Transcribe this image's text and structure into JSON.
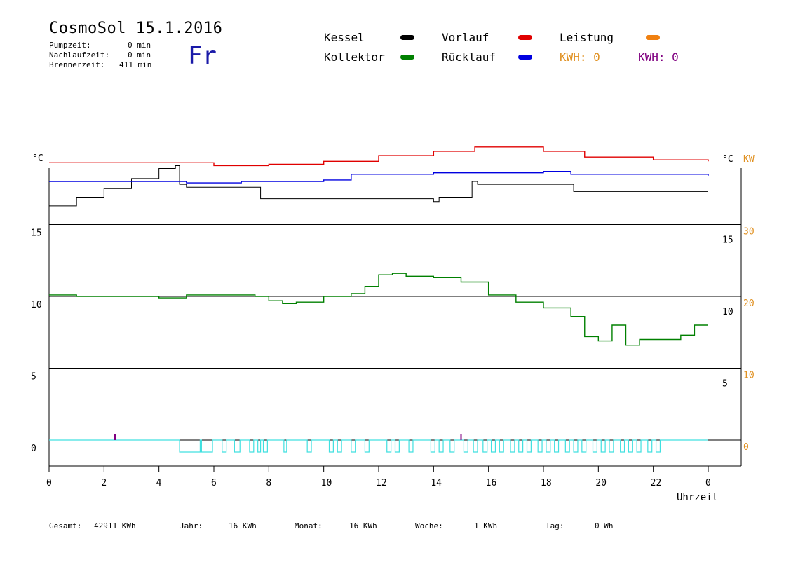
{
  "header": {
    "title": "CosmoSol 15.1.2016",
    "day": "Fr",
    "stats": [
      {
        "label": "Pumpzeit:",
        "value": "0 min"
      },
      {
        "label": "Nachlaufzeit:",
        "value": "0 min"
      },
      {
        "label": "Brennerzeit:",
        "value": "411 min"
      }
    ]
  },
  "legend": {
    "kessel": {
      "label": "Kessel",
      "color": "#000000"
    },
    "vorlauf": {
      "label": "Vorlauf",
      "color": "#e00000"
    },
    "leistung": {
      "label": "Leistung",
      "color": "#f08010"
    },
    "kollektor": {
      "label": "Kollektor",
      "color": "#008000"
    },
    "ruecklauf": {
      "label": "Rücklauf",
      "color": "#0000e0"
    },
    "kwh1": {
      "label": "KWH: 0",
      "color": "#e09020"
    },
    "kwh2": {
      "label": "KWH: 0",
      "color": "#800080"
    }
  },
  "chart_data": {
    "type": "line",
    "xlabel": "Uhrzeit",
    "xlim": [
      0,
      24
    ],
    "x_ticks": [
      "0",
      "2",
      "4",
      "6",
      "8",
      "10",
      "12",
      "14",
      "16",
      "18",
      "20",
      "22",
      "0"
    ],
    "left_axis_unit": "°C",
    "right_axis_unit": "°C",
    "right_axis_unit2": "KW",
    "left_ticks": [
      "15",
      "10",
      "5",
      "0"
    ],
    "right_ticks_c": [
      "15",
      "10",
      "5"
    ],
    "right_ticks_kw": [
      "30",
      "20",
      "10",
      "0"
    ],
    "ylim_left": [
      -1.4,
      20
    ],
    "series": [
      {
        "name": "Kessel",
        "color": "#000000",
        "x": [
          0,
          1,
          2,
          3,
          4,
          4.6,
          4.75,
          5,
          7.5,
          7.7,
          14,
          14.2,
          15.4,
          15.6,
          19,
          19.1,
          24
        ],
        "y": [
          16.3,
          16.9,
          17.5,
          18.2,
          18.9,
          19.1,
          17.8,
          17.6,
          17.6,
          16.8,
          16.6,
          16.9,
          18.0,
          17.8,
          17.8,
          17.3,
          17.3
        ]
      },
      {
        "name": "Vorlauf",
        "color": "#e00000",
        "x": [
          0,
          2,
          4,
          6,
          8,
          10,
          12,
          14,
          15.5,
          18,
          19.5,
          22,
          24
        ],
        "y": [
          19.3,
          19.3,
          19.3,
          19.1,
          19.2,
          19.4,
          19.8,
          20.1,
          20.4,
          20.1,
          19.7,
          19.5,
          19.4
        ]
      },
      {
        "name": "Rücklauf",
        "color": "#0000e0",
        "x": [
          0,
          3,
          5,
          6,
          7,
          10,
          11,
          14,
          18,
          19,
          24
        ],
        "y": [
          18.0,
          18.0,
          17.9,
          17.9,
          18.0,
          18.1,
          18.5,
          18.6,
          18.7,
          18.5,
          18.4
        ]
      },
      {
        "name": "Kollektor",
        "color": "#008000",
        "x": [
          0,
          1,
          2,
          3,
          4,
          4.5,
          5,
          6,
          7,
          7.5,
          8,
          8.5,
          9,
          10,
          11,
          11.5,
          12,
          12.5,
          13,
          14,
          15,
          16,
          17,
          18,
          19,
          19.5,
          20,
          20.5,
          21,
          21.5,
          22,
          23,
          23.5,
          24
        ],
        "y": [
          10.1,
          10.0,
          10.0,
          10.0,
          9.9,
          9.9,
          10.1,
          10.1,
          10.1,
          10.0,
          9.7,
          9.5,
          9.6,
          10.0,
          10.2,
          10.7,
          11.5,
          11.6,
          11.4,
          11.3,
          11.0,
          10.1,
          9.6,
          9.2,
          8.6,
          7.2,
          6.9,
          8.0,
          6.6,
          7.0,
          7.0,
          7.3,
          8.0,
          8.0
        ]
      }
    ]
  },
  "footer": [
    {
      "label": "Gesamt:",
      "value": "42911 KWh"
    },
    {
      "label": "Jahr:",
      "value": "16 KWh"
    },
    {
      "label": "Monat:",
      "value": "16 KWh"
    },
    {
      "label": "Woche:",
      "value": "1 KWh"
    },
    {
      "label": "Tag:",
      "value": "0 Wh"
    }
  ]
}
